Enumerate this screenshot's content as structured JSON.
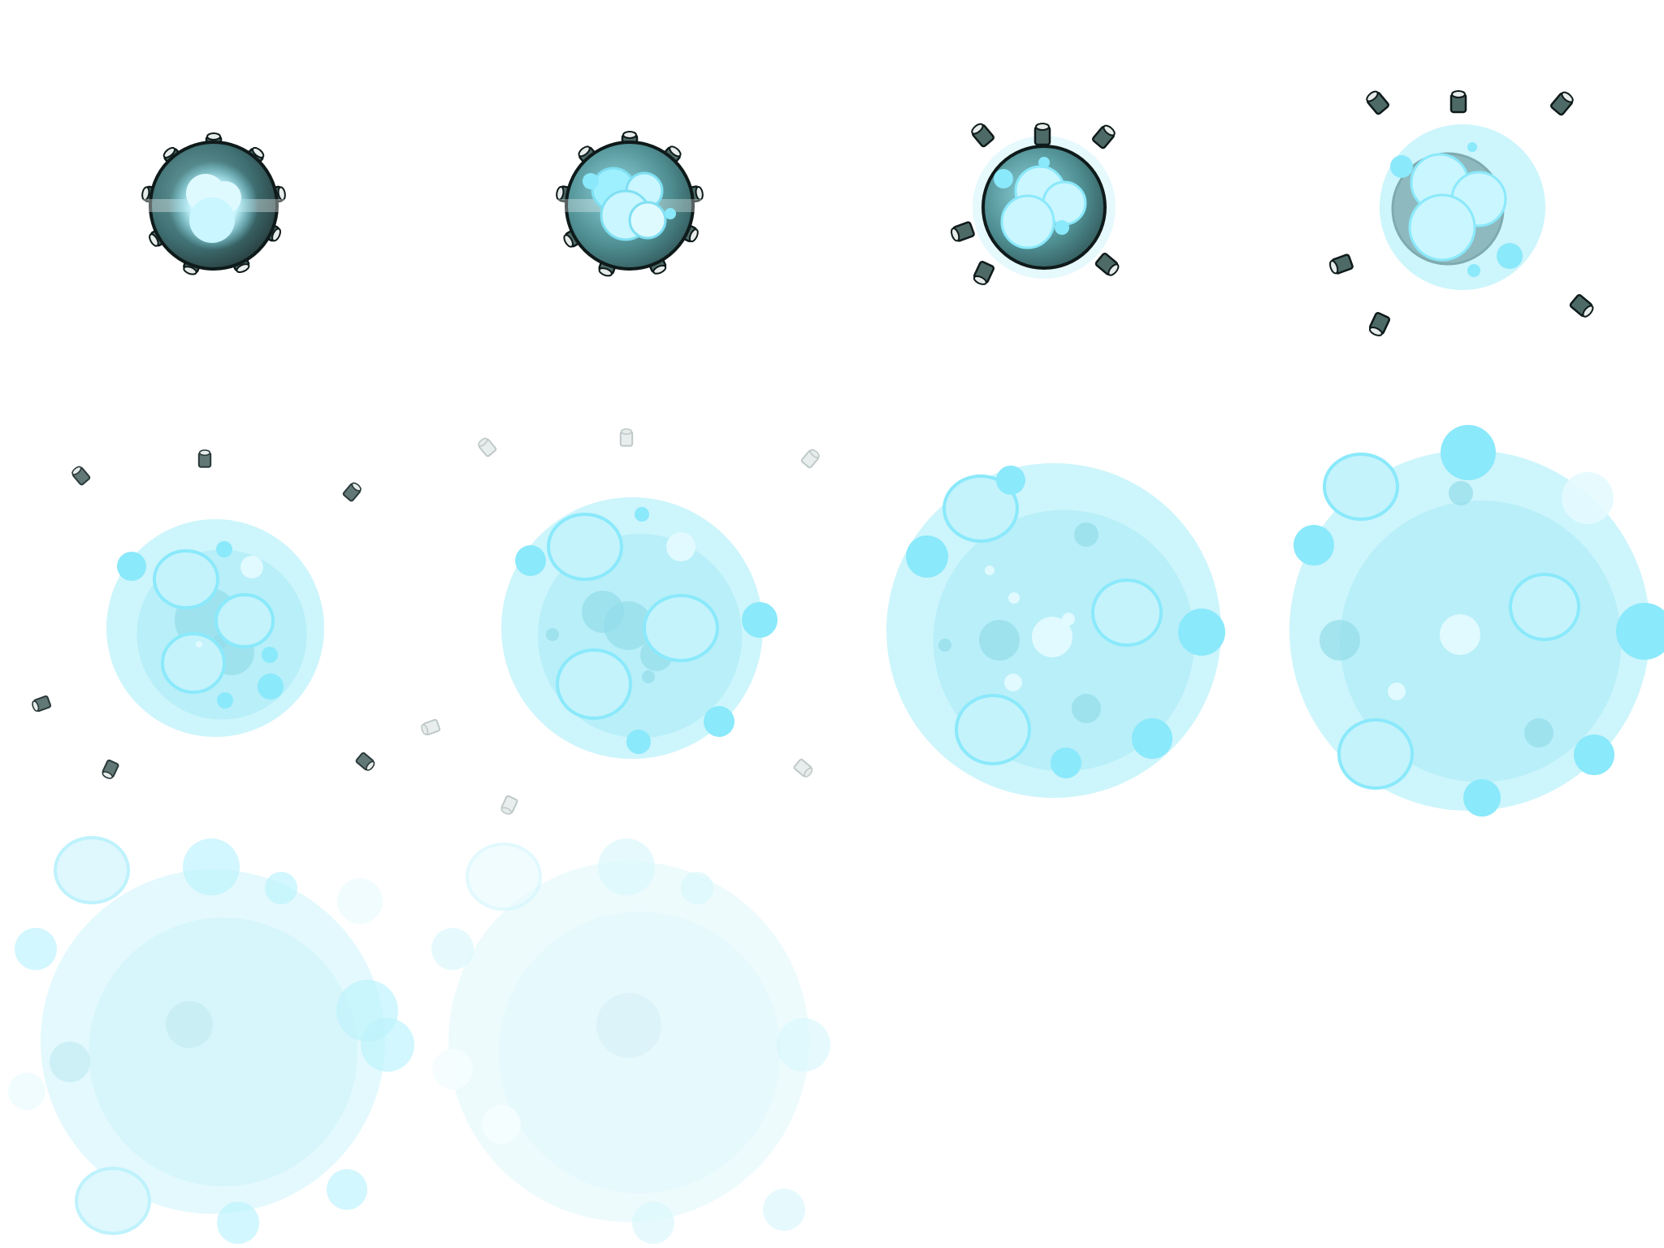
{
  "sprite_sheet": {
    "name": "",
    "background": "#ffffff",
    "palette": {
      "shell_dark": "#2b3a3a",
      "shell_mid": "#3f6f72",
      "shell_teal": "#4f8f93",
      "core_light": "#c9f6ff",
      "core_white": "#eafcff",
      "glow_cyan": "#8ae9fb",
      "cloud_light": "#cdf5fc",
      "cloud_mid": "#b6eff9",
      "cloud_deep": "#93dde9",
      "stud_fill": "#4e6a67",
      "stud_cap": "#e6ecea",
      "outline": "#0f1a1a"
    },
    "frames": [
      {
        "index": 1,
        "state": "armed-mine",
        "opacity": 1.0
      },
      {
        "index": 2,
        "state": "cracking",
        "opacity": 1.0
      },
      {
        "index": 3,
        "state": "studs-ejecting",
        "opacity": 1.0
      },
      {
        "index": 4,
        "state": "shell-bursting",
        "opacity": 1.0
      },
      {
        "index": 5,
        "state": "cloud-forming",
        "opacity": 1.0
      },
      {
        "index": 6,
        "state": "cloud-expanding",
        "opacity": 1.0
      },
      {
        "index": 7,
        "state": "cloud-large",
        "opacity": 1.0
      },
      {
        "index": 8,
        "state": "cloud-peak",
        "opacity": 1.0
      },
      {
        "index": 9,
        "state": "cloud-fading",
        "opacity": 0.55
      },
      {
        "index": 10,
        "state": "cloud-dissipating",
        "opacity": 0.35
      }
    ],
    "icons": {
      "mine": "sea-mine-icon",
      "stud": "mine-stud-icon",
      "bubble": "bubble-icon"
    }
  }
}
